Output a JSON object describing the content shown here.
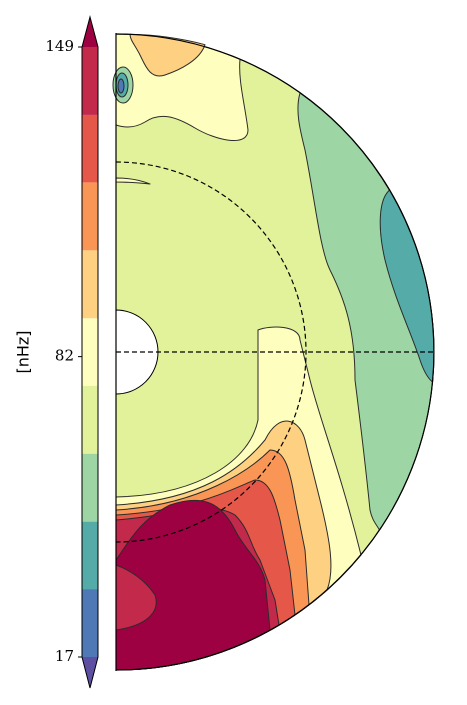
{
  "chart_data": {
    "type": "contour",
    "levels": [
      17,
      31.7,
      46.3,
      61,
      75.7,
      90.3,
      105,
      119.7,
      134.3,
      149
    ],
    "colors": [
      "#5e4fa2",
      "#4e78b6",
      "#55aba8",
      "#9dd6a4",
      "#e2f29b",
      "#fefebe",
      "#fdd181",
      "#f99656",
      "#e55749",
      "#c2294b",
      "#9e0142"
    ],
    "colorbar": {
      "label": "[nHz]",
      "lim": [
        17,
        149
      ],
      "ticks": [
        17,
        82,
        149
      ]
    }
  }
}
